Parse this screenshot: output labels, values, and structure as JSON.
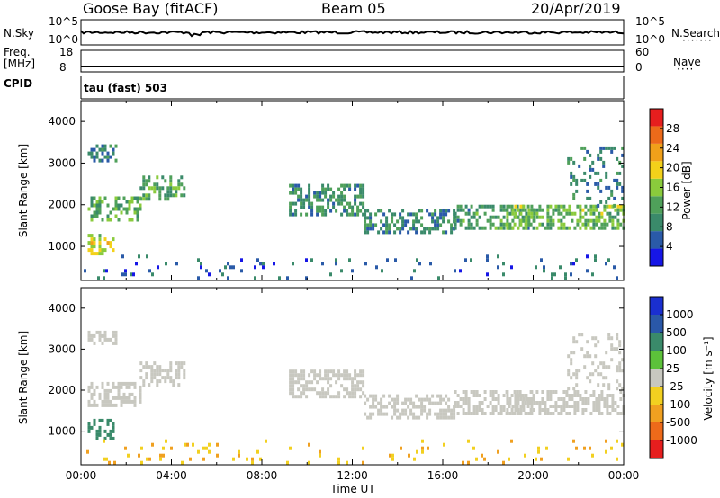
{
  "header": {
    "station": "Goose Bay (fitACF)",
    "beam": "Beam 05",
    "date": "20/Apr/2019"
  },
  "panels": {
    "nsky": {
      "left_label": "N.Sky",
      "left_ticks": [
        "10^5",
        "10^0"
      ],
      "right_ticks": [
        "10^5",
        "10^0"
      ],
      "right_label": "N.Search"
    },
    "freq": {
      "left_label_1": "Freq.",
      "left_label_2": "[MHz]",
      "left_ticks": [
        "18",
        "8"
      ],
      "right_ticks": [
        "60",
        "0"
      ],
      "right_label": "Nave"
    },
    "cpid": {
      "left_label": "CPID",
      "text": "tau (fast) 503"
    }
  },
  "colors": {
    "power": [
      "#1616e6",
      "#2a5aa8",
      "#3a8a6a",
      "#4fa05a",
      "#8acb3c",
      "#f3d11a",
      "#f0a01a",
      "#ec6a1a",
      "#e61e1e"
    ],
    "velocity": [
      "#1a2fd0",
      "#2a58a8",
      "#3a8a6a",
      "#5cc23a",
      "#c8c8c0",
      "#f2d020",
      "#f0a020",
      "#ee6a1a",
      "#e61e1e"
    ]
  },
  "chart_data": [
    {
      "type": "heatmap",
      "name": "power",
      "ylabel": "Slant Range [km]",
      "yticks": [
        "1000",
        "2000",
        "3000",
        "4000"
      ],
      "ylim": [
        180,
        4500
      ],
      "xlim_hours": [
        0,
        24
      ],
      "colorbar_label": "Power [dB]",
      "colorbar_ticks": [
        "4",
        "8",
        "12",
        "16",
        "20",
        "24",
        "28"
      ],
      "colorbar_range": [
        0,
        32
      ],
      "bands": [
        {
          "t0": 0.3,
          "t1": 2.6,
          "r0": 1650,
          "r1": 2200,
          "v": 13
        },
        {
          "t0": 2.6,
          "t1": 4.6,
          "r0": 2100,
          "r1": 2700,
          "v": 12
        },
        {
          "t0": 0.3,
          "t1": 1.5,
          "r0": 3100,
          "r1": 3450,
          "v": 8
        },
        {
          "t0": 0.3,
          "t1": 1.4,
          "r0": 800,
          "r1": 1300,
          "v": 18
        },
        {
          "t0": 9.2,
          "t1": 12.5,
          "r0": 1800,
          "r1": 2500,
          "v": 10
        },
        {
          "t0": 12.5,
          "t1": 16.5,
          "r0": 1300,
          "r1": 1900,
          "v": 9
        },
        {
          "t0": 16.5,
          "t1": 20.0,
          "r0": 1400,
          "r1": 2000,
          "v": 11
        },
        {
          "t0": 18.8,
          "t1": 24.0,
          "r0": 1450,
          "r1": 2000,
          "v": 14
        },
        {
          "t0": 21.5,
          "t1": 24.0,
          "r0": 2000,
          "r1": 3400,
          "v": 8
        },
        {
          "t0": 0.0,
          "t1": 24.0,
          "r0": 200,
          "r1": 800,
          "v": 6
        }
      ]
    },
    {
      "type": "heatmap",
      "name": "velocity",
      "ylabel": "Slant Range [km]",
      "yticks": [
        "1000",
        "2000",
        "3000",
        "4000"
      ],
      "ylim": [
        180,
        4500
      ],
      "xlim_hours": [
        0,
        24
      ],
      "xticks": [
        "00:00",
        "04:00",
        "08:00",
        "12:00",
        "16:00",
        "20:00",
        "00:00"
      ],
      "xlabel": "Time UT",
      "colorbar_label": "Velocity [m s⁻¹]",
      "colorbar_ticks": [
        "1000",
        "500",
        "100",
        "25",
        "-25",
        "-100",
        "-500",
        "-1000"
      ],
      "bands": [
        {
          "t0": 0.3,
          "t1": 2.6,
          "r0": 1650,
          "r1": 2200,
          "v": 0
        },
        {
          "t0": 2.6,
          "t1": 4.6,
          "r0": 2100,
          "r1": 2700,
          "v": 0
        },
        {
          "t0": 0.3,
          "t1": 1.5,
          "r0": 3100,
          "r1": 3450,
          "v": 0
        },
        {
          "t0": 0.3,
          "t1": 1.4,
          "r0": 800,
          "r1": 1300,
          "v": 150
        },
        {
          "t0": 9.2,
          "t1": 12.5,
          "r0": 1800,
          "r1": 2500,
          "v": 0
        },
        {
          "t0": 12.5,
          "t1": 16.5,
          "r0": 1300,
          "r1": 1900,
          "v": 0
        },
        {
          "t0": 16.5,
          "t1": 20.0,
          "r0": 1400,
          "r1": 2000,
          "v": 0
        },
        {
          "t0": 18.8,
          "t1": 24.0,
          "r0": 1450,
          "r1": 2000,
          "v": 0
        },
        {
          "t0": 21.5,
          "t1": 24.0,
          "r0": 2000,
          "r1": 3400,
          "v": 0
        },
        {
          "t0": 0.0,
          "t1": 24.0,
          "r0": 200,
          "r1": 800,
          "v": -100
        }
      ]
    }
  ]
}
